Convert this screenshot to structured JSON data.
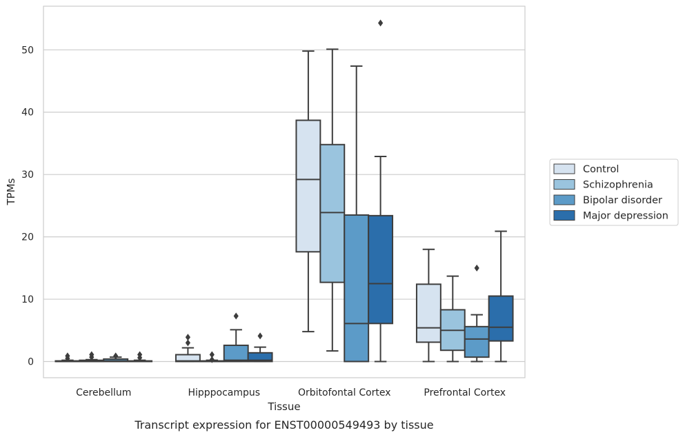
{
  "chart_data": {
    "type": "boxplot",
    "caption": "Transcript expression for ENST00000549493 by tissue",
    "xlabel": "Tissue",
    "ylabel": "TPMs",
    "ylim": [
      -2.6,
      57
    ],
    "yticks": [
      0,
      10,
      20,
      30,
      40,
      50
    ],
    "grid": "horizontal",
    "legend_position": "right",
    "categories": [
      "Cerebellum",
      "Hipppocampus",
      "Orbitofontal Cortex",
      "Prefrontal Cortex"
    ],
    "series": [
      {
        "name": "Control",
        "color": "#d6e3f0",
        "boxes": [
          {
            "whislo": 0,
            "q1": 0,
            "med": 0,
            "q3": 0.1,
            "whishi": 0.2,
            "fliers": [
              0.5,
              0.9
            ]
          },
          {
            "whislo": 0,
            "q1": 0,
            "med": 0.1,
            "q3": 1.1,
            "whishi": 2.2,
            "fliers": [
              3.0,
              3.9
            ]
          },
          {
            "whislo": 4.8,
            "q1": 17.6,
            "med": 29.2,
            "q3": 38.7,
            "whishi": 49.8,
            "fliers": []
          },
          {
            "whislo": 0,
            "q1": 3.1,
            "med": 5.4,
            "q3": 12.4,
            "whishi": 18.0,
            "fliers": []
          }
        ]
      },
      {
        "name": "Schizophrenia",
        "color": "#9ac4de",
        "boxes": [
          {
            "whislo": 0,
            "q1": 0,
            "med": 0,
            "q3": 0.2,
            "whishi": 0.3,
            "fliers": [
              0.7,
              1.1
            ]
          },
          {
            "whislo": 0,
            "q1": 0,
            "med": 0,
            "q3": 0.1,
            "whishi": 0.2,
            "fliers": [
              0.3,
              1.1
            ]
          },
          {
            "whislo": 1.7,
            "q1": 12.7,
            "med": 23.9,
            "q3": 34.8,
            "whishi": 50.1,
            "fliers": []
          },
          {
            "whislo": 0,
            "q1": 1.8,
            "med": 5.0,
            "q3": 8.3,
            "whishi": 13.7,
            "fliers": []
          }
        ]
      },
      {
        "name": "Bipolar disorder",
        "color": "#5c9bc8",
        "boxes": [
          {
            "whislo": 0,
            "q1": 0,
            "med": 0.1,
            "q3": 0.4,
            "whishi": 0.7,
            "fliers": [
              0.9
            ]
          },
          {
            "whislo": 0,
            "q1": 0,
            "med": 0.2,
            "q3": 2.6,
            "whishi": 5.1,
            "fliers": [
              7.3
            ]
          },
          {
            "whislo": 0,
            "q1": 0,
            "med": 6.1,
            "q3": 23.5,
            "whishi": 47.4,
            "fliers": []
          },
          {
            "whislo": 0,
            "q1": 0.7,
            "med": 3.6,
            "q3": 5.6,
            "whishi": 7.5,
            "fliers": [
              15.0
            ]
          }
        ]
      },
      {
        "name": "Major depression",
        "color": "#2b6eab",
        "boxes": [
          {
            "whislo": 0,
            "q1": 0,
            "med": 0,
            "q3": 0.1,
            "whishi": 0.2,
            "fliers": [
              0.6,
              1.1
            ]
          },
          {
            "whislo": 0,
            "q1": 0,
            "med": 0.2,
            "q3": 1.4,
            "whishi": 2.3,
            "fliers": [
              4.1
            ]
          },
          {
            "whislo": 0,
            "q1": 6.1,
            "med": 12.5,
            "q3": 23.4,
            "whishi": 32.9,
            "fliers": [
              54.3
            ]
          },
          {
            "whislo": 0,
            "q1": 3.3,
            "med": 5.5,
            "q3": 10.5,
            "whishi": 20.9,
            "fliers": []
          }
        ]
      }
    ]
  }
}
